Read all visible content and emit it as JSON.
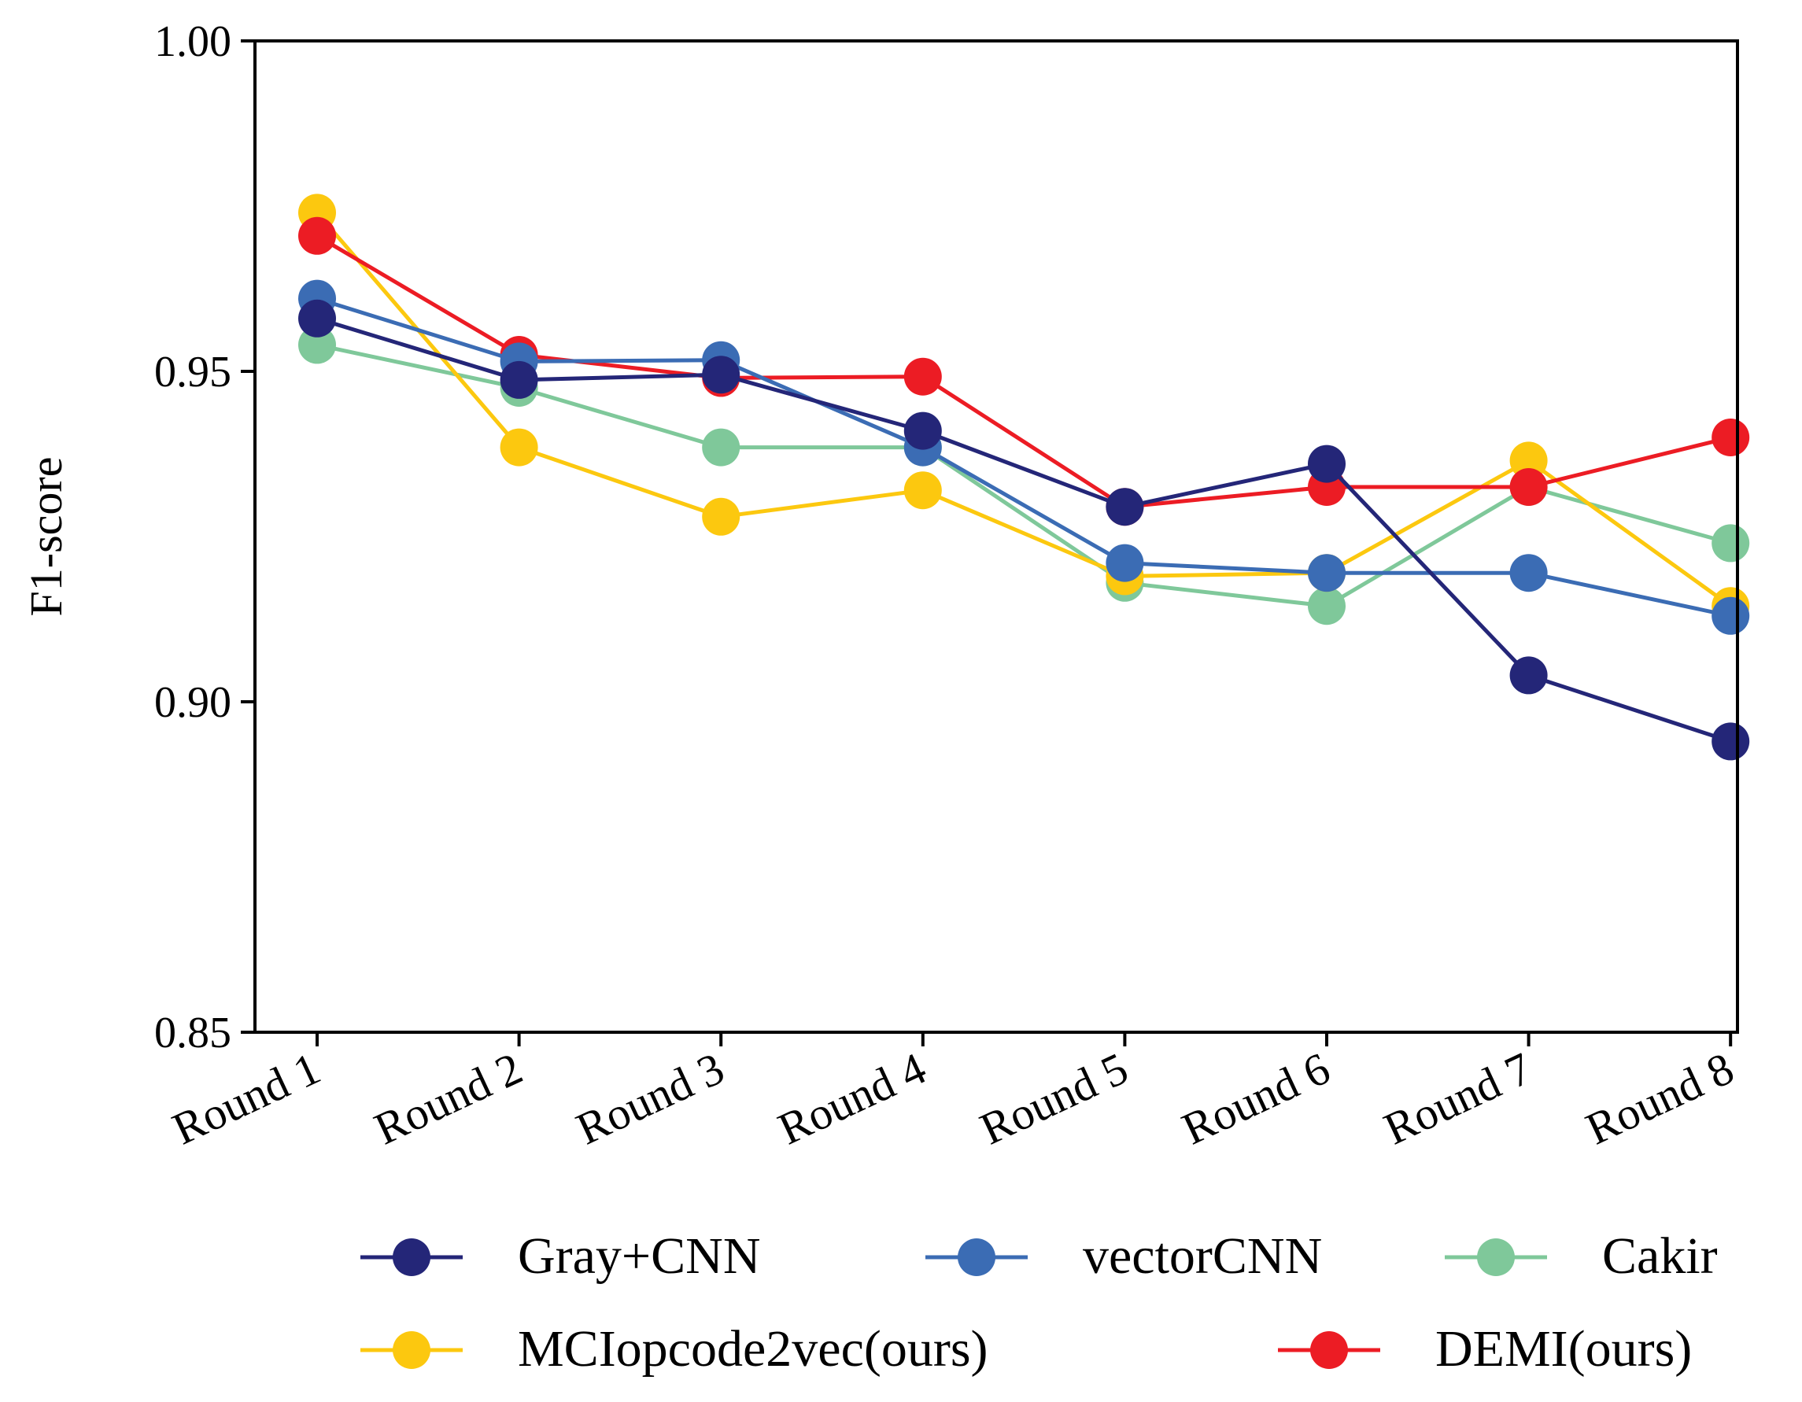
{
  "chart_data": {
    "type": "line",
    "title": "",
    "xlabel": "",
    "ylabel": "F1-score",
    "ylim": [
      0.85,
      1.0
    ],
    "yticks": [
      "0.85",
      "0.90",
      "0.95",
      "1.00"
    ],
    "ytick_values": [
      0.85,
      0.9,
      0.95,
      1.0
    ],
    "categories": [
      "Round 1",
      "Round 2",
      "Round 3",
      "Round 4",
      "Round 5",
      "Round 6",
      "Round 7",
      "Round 8"
    ],
    "legend_position": "bottom",
    "series": [
      {
        "name": "Cakir",
        "color": "#7fc89a",
        "values": [
          0.954,
          0.9475,
          0.9385,
          0.9385,
          0.918,
          0.9145,
          0.9325,
          0.924
        ]
      },
      {
        "name": "MCIopcode2vec(ours)",
        "color": "#fcc80f",
        "values": [
          0.974,
          0.9385,
          0.928,
          0.932,
          0.919,
          0.9195,
          0.9365,
          0.9145
        ]
      },
      {
        "name": "DEMI(ours)",
        "color": "#ec1c24",
        "values": [
          0.9705,
          0.9525,
          0.949,
          0.9492,
          0.9295,
          0.9325,
          0.9325,
          0.94
        ]
      },
      {
        "name": "vectorCNN",
        "color": "#3b6cb4",
        "values": [
          0.961,
          0.9515,
          0.9517,
          0.9385,
          0.921,
          0.9195,
          0.9195,
          0.913
        ]
      },
      {
        "name": "Gray+CNN",
        "color": "#242678",
        "values": [
          0.958,
          0.9487,
          0.9495,
          0.941,
          0.9295,
          0.936,
          0.904,
          0.894
        ]
      }
    ],
    "legend_order": [
      "Gray+CNN",
      "vectorCNN",
      "Cakir",
      "MCIopcode2vec(ours)",
      "DEMI(ours)"
    ]
  }
}
